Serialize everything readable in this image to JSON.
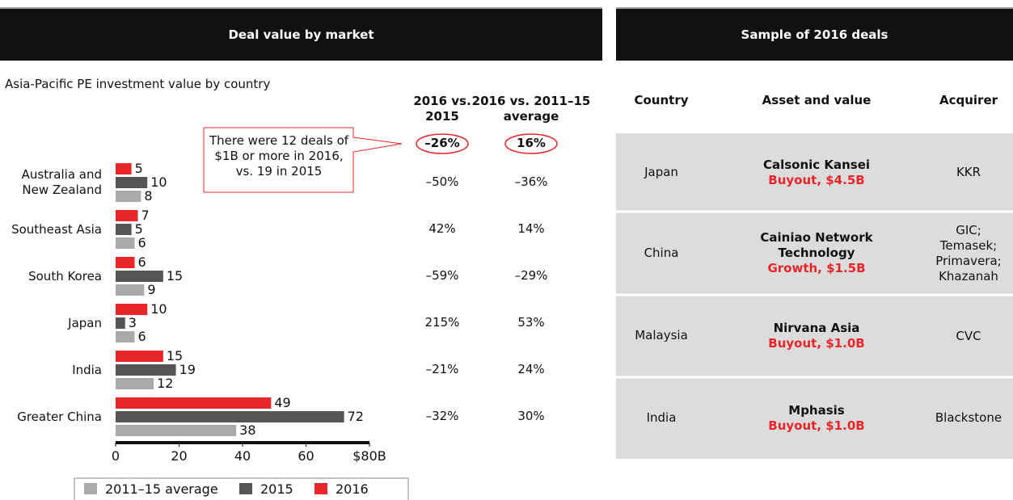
{
  "chart_data": {
    "type": "hbar",
    "title": "Deal value by market",
    "subtitle": "Asia-Pacific PE investment value by country",
    "categories": [
      "Australia and New Zealand",
      "Southeast Asia",
      "South Korea",
      "Japan",
      "India",
      "Greater China"
    ],
    "series": [
      {
        "name": "2016",
        "color": "#e8262a",
        "values": [
          5,
          7,
          6,
          10,
          15,
          49
        ]
      },
      {
        "name": "2015",
        "color": "#555555",
        "values": [
          10,
          5,
          15,
          3,
          19,
          72
        ]
      },
      {
        "name": "2011–15 average",
        "color": "#aaaaaa",
        "values": [
          8,
          6,
          9,
          6,
          12,
          38
        ]
      }
    ],
    "xlim": [
      0,
      80
    ],
    "xticks": [
      0,
      20,
      40,
      60,
      {
        "value": 80,
        "label": "$80B"
      }
    ],
    "annotation": "There were 12 deals of $1B or more in 2016, vs. 19 in 2015",
    "comparison": {
      "columns": [
        "2016 vs. 2015",
        "2016 vs. 2011–15 average"
      ],
      "totals": [
        "–26%",
        "16%"
      ],
      "rows": [
        [
          "–50%",
          "–36%"
        ],
        [
          "42%",
          "14%"
        ],
        [
          "–59%",
          "–29%"
        ],
        [
          "215%",
          "53%"
        ],
        [
          "–21%",
          "24%"
        ],
        [
          "–32%",
          "30%"
        ]
      ]
    }
  },
  "deals": {
    "title": "Sample of 2016 deals",
    "columns": [
      "Country",
      "Asset and value",
      "Acquirer"
    ],
    "rows": [
      {
        "country": "Japan",
        "asset": "Calsonic Kansei",
        "deal": "Buyout, $4.5B",
        "acquirer": "KKR"
      },
      {
        "country": "China",
        "asset": "Cainiao Network Technology",
        "deal": "Growth, $1.5B",
        "acquirer": "GIC; Temasek; Primavera; Khazanah"
      },
      {
        "country": "Malaysia",
        "asset": "Nirvana Asia",
        "deal": "Buyout, $1.0B",
        "acquirer": "CVC"
      },
      {
        "country": "India",
        "asset": "Mphasis",
        "deal": "Buyout, $1.0B",
        "acquirer": "Blackstone"
      }
    ]
  }
}
